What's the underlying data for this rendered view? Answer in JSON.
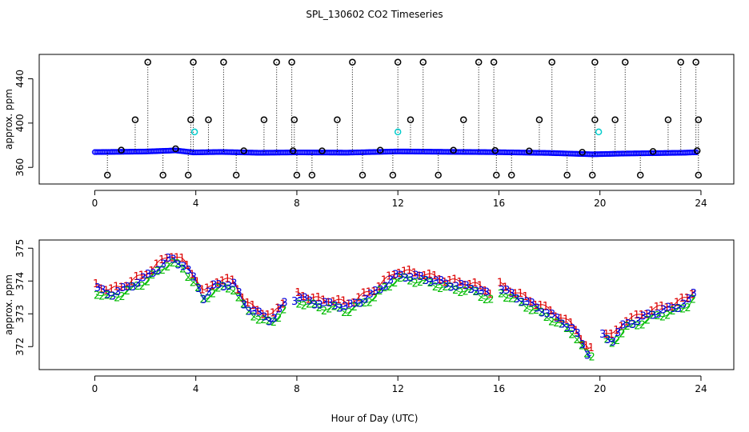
{
  "title": "SPL_130602  CO2 Timeseries",
  "xlabel": "Hour of Day (UTC)",
  "chart_data": [
    {
      "type": "scatter",
      "name": "upper",
      "ylabel": "approx. ppm",
      "xlim": [
        -2.2,
        25.3
      ],
      "ylim": [
        345,
        462
      ],
      "xticks": [
        0,
        4,
        8,
        12,
        16,
        20,
        24
      ],
      "xtick_labels": [
        "0",
        "4",
        "8",
        "12",
        "16",
        "20",
        "24"
      ],
      "yticks": [
        360,
        400,
        440
      ],
      "ytick_labels": [
        "360",
        "400",
        "440"
      ],
      "baseline": [
        [
          0,
          373.8
        ],
        [
          2,
          374.3
        ],
        [
          3.2,
          375.3
        ],
        [
          3.9,
          373.5
        ],
        [
          5,
          373.9
        ],
        [
          6.5,
          373.2
        ],
        [
          8,
          373.5
        ],
        [
          10,
          373.3
        ],
        [
          12,
          374.4
        ],
        [
          14,
          374.0
        ],
        [
          16,
          373.7
        ],
        [
          18,
          373.0
        ],
        [
          19.7,
          371.8
        ],
        [
          21,
          372.5
        ],
        [
          23.3,
          373.2
        ],
        [
          23.8,
          373.6
        ]
      ],
      "outliers_high": [
        [
          2.1,
          455
        ],
        [
          3.9,
          455
        ],
        [
          5.1,
          455
        ],
        [
          7.2,
          455
        ],
        [
          7.8,
          455
        ],
        [
          10.2,
          455
        ],
        [
          12.0,
          455
        ],
        [
          13.0,
          455
        ],
        [
          15.2,
          455
        ],
        [
          15.8,
          455
        ],
        [
          18.1,
          455
        ],
        [
          19.8,
          455
        ],
        [
          21.0,
          455
        ],
        [
          23.2,
          455
        ],
        [
          23.8,
          455
        ]
      ],
      "outliers_mid": [
        [
          1.6,
          403
        ],
        [
          3.8,
          403
        ],
        [
          4.5,
          403
        ],
        [
          6.7,
          403
        ],
        [
          7.9,
          403
        ],
        [
          9.6,
          403
        ],
        [
          12.5,
          403
        ],
        [
          14.6,
          403
        ],
        [
          17.6,
          403
        ],
        [
          19.8,
          403
        ],
        [
          20.6,
          403
        ],
        [
          22.7,
          403
        ],
        [
          23.9,
          403
        ]
      ],
      "outliers_low": [
        [
          0.5,
          353
        ],
        [
          2.7,
          353
        ],
        [
          3.7,
          353
        ],
        [
          5.6,
          353
        ],
        [
          8.0,
          353
        ],
        [
          8.6,
          353
        ],
        [
          10.6,
          353
        ],
        [
          11.8,
          353
        ],
        [
          13.6,
          353
        ],
        [
          15.9,
          353
        ],
        [
          16.5,
          353
        ],
        [
          18.7,
          353
        ],
        [
          19.7,
          353
        ],
        [
          21.6,
          353
        ],
        [
          23.9,
          353
        ]
      ],
      "cyan_points": [
        [
          3.95,
          392
        ],
        [
          12.0,
          392
        ],
        [
          19.95,
          392
        ]
      ],
      "marker_colors": {
        "outlier": "#000000",
        "baseline": "#0000ff",
        "cyan": "#00cccc",
        "fill": "#00aa00"
      }
    },
    {
      "type": "scatter",
      "name": "lower",
      "ylabel": "approx. ppm",
      "xlim": [
        -2.2,
        25.3
      ],
      "ylim": [
        371.3,
        375.25
      ],
      "xticks": [
        0,
        4,
        8,
        12,
        16,
        20,
        24
      ],
      "xtick_labels": [
        "0",
        "4",
        "8",
        "12",
        "16",
        "20",
        "24"
      ],
      "yticks": [
        372,
        373,
        374,
        375
      ],
      "ytick_labels": [
        "372",
        "373",
        "374",
        "375"
      ],
      "series": [
        {
          "name": "1",
          "label": "1",
          "color": "#dd0000",
          "offset": 0.12
        },
        {
          "name": "2",
          "label": "2",
          "color": "#00bb00",
          "offset": -0.12
        },
        {
          "name": "3",
          "label": "3",
          "color": "#0000dd",
          "offset": 0.0
        }
      ],
      "profile": [
        [
          0,
          373.8
        ],
        [
          0.6,
          373.6
        ],
        [
          1.0,
          373.7
        ],
        [
          1.5,
          373.9
        ],
        [
          2.0,
          374.1
        ],
        [
          2.5,
          374.4
        ],
        [
          3.0,
          374.7
        ],
        [
          3.5,
          374.5
        ],
        [
          4.0,
          374.0
        ],
        [
          4.3,
          373.5
        ],
        [
          4.8,
          373.9
        ],
        [
          5.5,
          373.9
        ],
        [
          6.0,
          373.2
        ],
        [
          6.5,
          373.0
        ],
        [
          7.0,
          372.8
        ],
        [
          7.5,
          373.3
        ],
        [
          8.0,
          373.5
        ],
        [
          9.0,
          373.3
        ],
        [
          9.5,
          373.3
        ],
        [
          10.0,
          373.2
        ],
        [
          11.0,
          373.6
        ],
        [
          12.0,
          374.2
        ],
        [
          13.0,
          374.1
        ],
        [
          14.0,
          373.9
        ],
        [
          15.0,
          373.8
        ],
        [
          15.8,
          373.5
        ],
        [
          16.0,
          373.8
        ],
        [
          17.0,
          373.4
        ],
        [
          18.0,
          373.0
        ],
        [
          19.0,
          372.5
        ],
        [
          19.6,
          371.7
        ],
        [
          20.0,
          372.4
        ],
        [
          20.5,
          372.2
        ],
        [
          21.0,
          372.7
        ],
        [
          21.5,
          372.8
        ],
        [
          22.0,
          373.0
        ],
        [
          22.5,
          373.1
        ],
        [
          23.0,
          373.2
        ],
        [
          23.5,
          373.4
        ],
        [
          23.8,
          373.7
        ]
      ],
      "gaps": [
        [
          7.6,
          7.9
        ],
        [
          15.7,
          16.0
        ],
        [
          19.7,
          20.1
        ]
      ]
    }
  ]
}
